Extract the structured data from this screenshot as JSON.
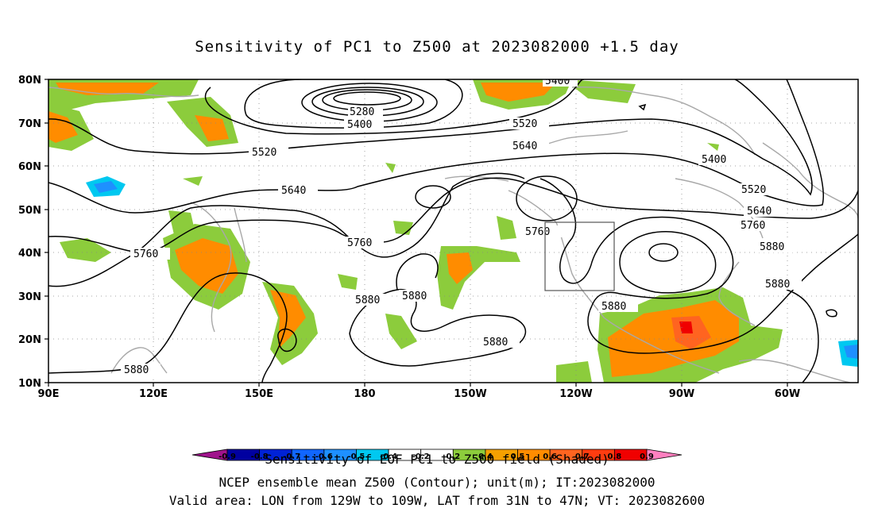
{
  "title": "Sensitivity of PC1 to Z500 at 2023082000 +1.5 day",
  "lat_labels": [
    "80N",
    "70N",
    "60N",
    "50N",
    "40N",
    "30N",
    "20N",
    "10N"
  ],
  "lon_labels": [
    "90E",
    "120E",
    "150E",
    "180",
    "150W",
    "120W",
    "90W",
    "60W"
  ],
  "contour_labels": [
    "5400",
    "5280",
    "5400",
    "5520",
    "5640",
    "5520",
    "5760",
    "5640",
    "5760",
    "5880",
    "5880",
    "5880",
    "5880",
    "5880",
    "5400",
    "5520",
    "5640",
    "5760",
    "5880",
    "5880",
    "5880",
    "5760"
  ],
  "colorbar": {
    "ticks": [
      "-0.9",
      "-0.8",
      "-0.7",
      "-0.6",
      "-0.5",
      "-0.4",
      "-0.2",
      "0.2",
      "0.4",
      "0.5",
      "0.6",
      "0.7",
      "0.8",
      "0.9"
    ],
    "colors": [
      "#a0138c",
      "#0000a0",
      "#0022d6",
      "#1166ff",
      "#1e90ff",
      "#00c8f0",
      "#ffffff",
      "#ffffff",
      "#8ccc3c",
      "#f5a000",
      "#ff8c00",
      "#ff6420",
      "#ff3c10",
      "#f00000",
      "#ff80c0"
    ]
  },
  "footer": {
    "line1": "Sensitivity of EOF PC1 to Z500 field (Shaded)",
    "line2": "NCEP ensemble mean Z500 (Contour); unit(m); IT:2023082000",
    "line3": "Valid area: LON from 129W to 109W, LAT from 31N to 47N; VT: 2023082600"
  }
}
